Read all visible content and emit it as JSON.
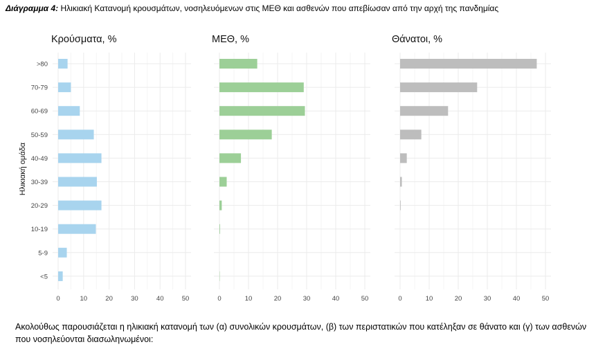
{
  "caption": {
    "prefix": "Διάγραμμα 4:",
    "text": "Ηλικιακή Κατανομή κρουσμάτων, νοσηλευόμενων στις ΜΕΘ και ασθενών που απεβίωσαν από την αρχή της πανδημίας"
  },
  "paragraph": "Ακολούθως παρουσιάζεται η ηλικιακή κατανομή των (α) συνολικών κρουσμάτων, (β) των περιστατικών που κατέληξαν σε θάνατο και (γ) των ασθενών που νοσηλεύονται διασωληνωμένοι:",
  "chart_data": {
    "type": "bar",
    "orientation": "horizontal",
    "ylabel": "Ηλικιακή ομάδα",
    "categories": [
      ">80",
      "70-79",
      "60-69",
      "50-59",
      "40-49",
      "30-39",
      "20-29",
      "10-19",
      "5-9",
      "<5"
    ],
    "xlim": [
      0,
      50
    ],
    "xticks": [
      0,
      10,
      20,
      30,
      40,
      50
    ],
    "grid": true,
    "panels": [
      {
        "title": "Κρούσματα, %",
        "color": "#a8d4ee",
        "values": [
          3.7,
          5.0,
          8.5,
          14.0,
          17.0,
          15.2,
          17.0,
          14.8,
          3.4,
          1.8
        ]
      },
      {
        "title": "ΜΕΘ, %",
        "color": "#9ccf97",
        "values": [
          13.0,
          29.0,
          29.4,
          18.0,
          7.4,
          2.5,
          0.8,
          0.2,
          0.0,
          0.1
        ]
      },
      {
        "title": "Θάνατοι, %",
        "color": "#bdbdbd",
        "values": [
          47.0,
          26.5,
          16.5,
          7.3,
          2.3,
          0.6,
          0.2,
          0.0,
          0.0,
          0.0
        ]
      }
    ]
  }
}
